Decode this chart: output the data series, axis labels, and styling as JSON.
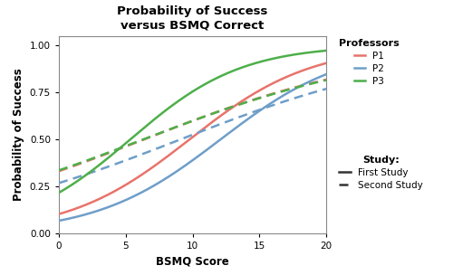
{
  "title": "Probability of Success\nversus BSMQ Correct",
  "xlabel": "BSMQ Score",
  "ylabel": "Probability of Success",
  "xlim": [
    0,
    20
  ],
  "ylim": [
    0.0,
    1.05
  ],
  "yticks": [
    0.0,
    0.25,
    0.5,
    0.75,
    1.0
  ],
  "xticks": [
    0,
    5,
    10,
    15,
    20
  ],
  "colors": {
    "P1": "#E8736B",
    "P2": "#6E9EC9",
    "P3": "#4DAF4A"
  },
  "params": {
    "P1": {
      "first": [
        -2.15,
        0.22
      ],
      "second": [
        -0.7,
        0.11
      ]
    },
    "P2": {
      "first": [
        -2.6,
        0.215
      ],
      "second": [
        -1.0,
        0.11
      ]
    },
    "P3": {
      "first": [
        -1.28,
        0.24
      ],
      "second": [
        -0.68,
        0.108
      ]
    }
  },
  "background_color": "#FFFFFF",
  "title_fontsize": 9.5,
  "label_fontsize": 8.5,
  "tick_fontsize": 7.5,
  "legend_fontsize": 7.5,
  "linewidth": 1.8
}
